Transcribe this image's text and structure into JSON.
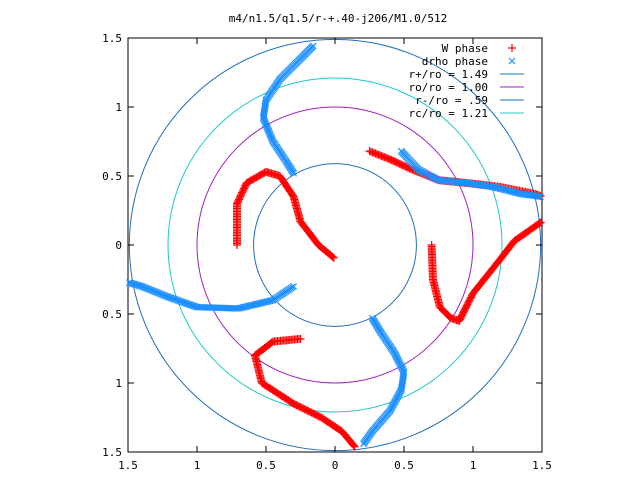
{
  "chart_data": {
    "type": "scatter",
    "title": "m4/n1.5/q1.5/r-+.40-j206/M1.0/512",
    "xlabel": "",
    "ylabel": "",
    "xlim": [
      -1.5,
      1.5
    ],
    "ylim": [
      -1.5,
      1.5
    ],
    "x_ticks": [
      -1.5,
      -1,
      -0.5,
      0,
      0.5,
      1,
      1.5
    ],
    "y_ticks": [
      -1.5,
      -1,
      -0.5,
      0,
      0.5,
      1,
      1.5
    ],
    "x_tick_labels": [
      "1.5",
      "1",
      "0.5",
      "0",
      "0.5",
      "1",
      "1.5"
    ],
    "y_tick_labels": [
      "1.5",
      "1",
      "0.5",
      "0",
      "0.5",
      "1",
      "1.5"
    ],
    "grid": false,
    "legend_position": "top-right",
    "circles": [
      {
        "label": "r+/ro = 1.49",
        "radius": 1.49,
        "color": "#1f6fbf"
      },
      {
        "label": "ro/ro = 1.00",
        "radius": 1.0,
        "color": "#a020c0"
      },
      {
        "label": "r-/ro = .59",
        "radius": 0.59,
        "color": "#1f6fbf"
      },
      {
        "label": "rc/ro = 1.21",
        "radius": 1.21,
        "color": "#20c8c8"
      }
    ],
    "series": [
      {
        "name": "W phase",
        "marker": "+",
        "color": "#ff0000",
        "arms": [
          [
            [
              -0.71,
              0.0
            ],
            [
              -0.71,
              0.3
            ],
            [
              -0.64,
              0.45
            ],
            [
              -0.5,
              0.53
            ],
            [
              -0.4,
              0.5
            ],
            [
              -0.3,
              0.35
            ],
            [
              -0.25,
              0.17
            ],
            [
              -0.12,
              0.0
            ],
            [
              0.0,
              -0.1
            ]
          ],
          [
            [
              0.7,
              0.0
            ],
            [
              0.71,
              -0.25
            ],
            [
              0.76,
              -0.45
            ],
            [
              0.84,
              -0.53
            ],
            [
              0.9,
              -0.55
            ],
            [
              1.0,
              -0.35
            ],
            [
              1.2,
              -0.1
            ],
            [
              1.3,
              0.03
            ],
            [
              1.4,
              0.1
            ],
            [
              1.5,
              0.17
            ]
          ],
          [
            [
              -0.25,
              -0.68
            ],
            [
              -0.45,
              -0.7
            ],
            [
              -0.58,
              -0.8
            ],
            [
              -0.53,
              -1.0
            ],
            [
              -0.3,
              -1.15
            ],
            [
              -0.1,
              -1.25
            ],
            [
              0.05,
              -1.35
            ],
            [
              0.15,
              -1.47
            ]
          ],
          [
            [
              0.25,
              0.68
            ],
            [
              0.4,
              0.62
            ],
            [
              0.55,
              0.55
            ],
            [
              0.75,
              0.47
            ],
            [
              0.95,
              0.45
            ],
            [
              1.2,
              0.42
            ],
            [
              1.45,
              0.37
            ],
            [
              1.5,
              0.35
            ]
          ]
        ]
      },
      {
        "name": "drho phase",
        "marker": "x",
        "color": "#1e90ff",
        "arms": [
          [
            [
              -0.3,
              0.52
            ],
            [
              -0.35,
              0.6
            ],
            [
              -0.45,
              0.75
            ],
            [
              -0.52,
              0.92
            ],
            [
              -0.5,
              1.05
            ],
            [
              -0.4,
              1.2
            ],
            [
              -0.25,
              1.35
            ],
            [
              -0.15,
              1.45
            ]
          ],
          [
            [
              -0.3,
              -0.3
            ],
            [
              -0.45,
              -0.4
            ],
            [
              -0.7,
              -0.46
            ],
            [
              -1.0,
              -0.45
            ],
            [
              -1.2,
              -0.38
            ],
            [
              -1.4,
              -0.3
            ],
            [
              -1.5,
              -0.27
            ]
          ],
          [
            [
              0.27,
              -0.53
            ],
            [
              0.33,
              -0.63
            ],
            [
              0.43,
              -0.78
            ],
            [
              0.5,
              -0.92
            ],
            [
              0.48,
              -1.05
            ],
            [
              0.4,
              -1.2
            ],
            [
              0.27,
              -1.35
            ],
            [
              0.2,
              -1.45
            ]
          ],
          [
            [
              0.48,
              0.68
            ],
            [
              0.6,
              0.55
            ],
            [
              0.75,
              0.47
            ],
            [
              0.95,
              0.45
            ],
            [
              1.15,
              0.42
            ],
            [
              1.35,
              0.37
            ],
            [
              1.5,
              0.35
            ]
          ]
        ]
      }
    ]
  }
}
